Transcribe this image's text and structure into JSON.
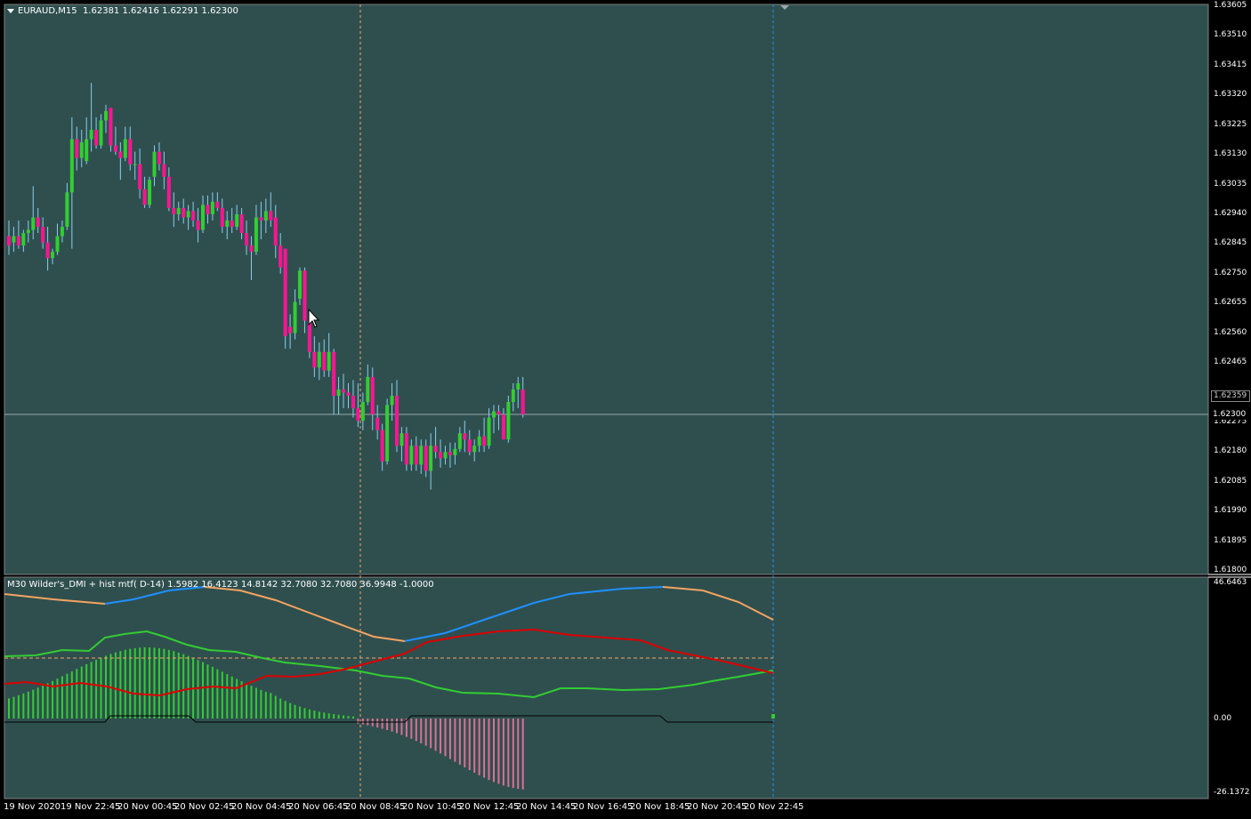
{
  "symbol_header": {
    "symbol": "EURAUD,M15",
    "ohlc": "1.62381 1.62416 1.62291 1.62300"
  },
  "indicator_header": "M30 Wilder's_DMI + hist mtf( D-14) 1.5982 16.4123 14.8142 32.7080 32.7080 36.9948 -1.0000",
  "colors": {
    "background": "#2F4F4F",
    "bull": "#32CD32",
    "bear": "#FF1493",
    "orange_line": "#F4A460",
    "blue_line": "#1E90FF",
    "red_line": "#DD0000",
    "green_line": "#32CD32",
    "hist_pos": "#32CD32",
    "hist_neg": "#DB7093"
  },
  "price_axis": {
    "ticks": [
      "1.63605",
      "1.63510",
      "1.63415",
      "1.63320",
      "1.63225",
      "1.63130",
      "1.63035",
      "1.62940",
      "1.62845",
      "1.62750",
      "1.62655",
      "1.62560",
      "1.62465",
      "1.62275",
      "1.62180",
      "1.62085",
      "1.61990",
      "1.61895",
      "1.61800"
    ],
    "bid_label": "1.62359",
    "current_label": "1.62300"
  },
  "indicator_axis": {
    "top": "46.6463",
    "zero": "0.00",
    "bottom": "-26.1372"
  },
  "time_axis": [
    "19 Nov 2020",
    "19 Nov 22:45",
    "20 Nov 00:45",
    "20 Nov 02:45",
    "20 Nov 04:45",
    "20 Nov 06:45",
    "20 Nov 08:45",
    "20 Nov 10:45",
    "20 Nov 12:45",
    "20 Nov 14:45",
    "20 Nov 16:45",
    "20 Nov 18:45",
    "20 Nov 20:45",
    "20 Nov 22:45"
  ],
  "chart_data": {
    "type": "candlestick",
    "ylim": [
      1.618,
      1.63605
    ],
    "candles": [
      [
        1.6287,
        1.6292,
        1.6281,
        1.6284
      ],
      [
        1.6285,
        1.629,
        1.6282,
        1.6287
      ],
      [
        1.6287,
        1.6292,
        1.6283,
        1.6284
      ],
      [
        1.6284,
        1.6289,
        1.6282,
        1.6288
      ],
      [
        1.6288,
        1.6292,
        1.6285,
        1.6289
      ],
      [
        1.6289,
        1.6303,
        1.6286,
        1.6293
      ],
      [
        1.6293,
        1.6296,
        1.6288,
        1.629
      ],
      [
        1.629,
        1.6293,
        1.6283,
        1.6285
      ],
      [
        1.6285,
        1.629,
        1.6276,
        1.628
      ],
      [
        1.628,
        1.6283,
        1.6278,
        1.6282
      ],
      [
        1.6282,
        1.6291,
        1.6281,
        1.6287
      ],
      [
        1.6287,
        1.6292,
        1.6285,
        1.629
      ],
      [
        1.629,
        1.6304,
        1.6289,
        1.6301
      ],
      [
        1.6301,
        1.6325,
        1.6283,
        1.6318
      ],
      [
        1.6318,
        1.6322,
        1.6308,
        1.6312
      ],
      [
        1.6312,
        1.6321,
        1.6309,
        1.6317
      ],
      [
        1.6311,
        1.6325,
        1.631,
        1.6318
      ],
      [
        1.6318,
        1.6336,
        1.6314,
        1.6321
      ],
      [
        1.6321,
        1.6325,
        1.6315,
        1.6316
      ],
      [
        1.6316,
        1.6326,
        1.6315,
        1.6324
      ],
      [
        1.6324,
        1.6329,
        1.632,
        1.6327
      ],
      [
        1.6328,
        1.6328,
        1.6314,
        1.6316
      ],
      [
        1.6316,
        1.6322,
        1.6313,
        1.6314
      ],
      [
        1.6314,
        1.6317,
        1.6305,
        1.6312
      ],
      [
        1.6312,
        1.6322,
        1.6311,
        1.6318
      ],
      [
        1.6318,
        1.6322,
        1.6308,
        1.631
      ],
      [
        1.631,
        1.6314,
        1.6305,
        1.631
      ],
      [
        1.631,
        1.6315,
        1.6299,
        1.6302
      ],
      [
        1.6302,
        1.6306,
        1.6296,
        1.6297
      ],
      [
        1.6297,
        1.6306,
        1.6296,
        1.6305
      ],
      [
        1.6306,
        1.6316,
        1.6303,
        1.6314
      ],
      [
        1.6314,
        1.6317,
        1.6308,
        1.631
      ],
      [
        1.631,
        1.6314,
        1.6302,
        1.6306
      ],
      [
        1.6306,
        1.6309,
        1.6295,
        1.6296
      ],
      [
        1.6296,
        1.6301,
        1.629,
        1.6294
      ],
      [
        1.6294,
        1.6298,
        1.6292,
        1.6296
      ],
      [
        1.6296,
        1.6299,
        1.6291,
        1.6293
      ],
      [
        1.6293,
        1.6297,
        1.6289,
        1.6295
      ],
      [
        1.6295,
        1.6298,
        1.629,
        1.6292
      ],
      [
        1.6292,
        1.6296,
        1.6285,
        1.6289
      ],
      [
        1.6289,
        1.63,
        1.6288,
        1.6297
      ],
      [
        1.6297,
        1.63,
        1.6291,
        1.6294
      ],
      [
        1.6294,
        1.6301,
        1.6292,
        1.6298
      ],
      [
        1.6298,
        1.6301,
        1.6295,
        1.6296
      ],
      [
        1.6296,
        1.6299,
        1.6288,
        1.629
      ],
      [
        1.629,
        1.6295,
        1.6286,
        1.6292
      ],
      [
        1.6292,
        1.6296,
        1.6288,
        1.629
      ],
      [
        1.629,
        1.6297,
        1.6289,
        1.6294
      ],
      [
        1.6294,
        1.6296,
        1.6286,
        1.6288
      ],
      [
        1.6288,
        1.6292,
        1.6281,
        1.6284
      ],
      [
        1.6284,
        1.6287,
        1.6273,
        1.6282
      ],
      [
        1.6282,
        1.6297,
        1.6281,
        1.6293
      ],
      [
        1.6293,
        1.6298,
        1.6286,
        1.6292
      ],
      [
        1.6292,
        1.6299,
        1.6288,
        1.6295
      ],
      [
        1.6295,
        1.6301,
        1.629,
        1.6292
      ],
      [
        1.6293,
        1.6297,
        1.628,
        1.6284
      ],
      [
        1.6284,
        1.6288,
        1.6275,
        1.6277
      ],
      [
        1.6283,
        1.6283,
        1.6251,
        1.6255
      ],
      [
        1.6258,
        1.6262,
        1.6251,
        1.6256
      ],
      [
        1.6256,
        1.627,
        1.6254,
        1.6266
      ],
      [
        1.6267,
        1.6277,
        1.6265,
        1.6276
      ],
      [
        1.6276,
        1.6277,
        1.6256,
        1.626
      ],
      [
        1.626,
        1.6262,
        1.6248,
        1.625
      ],
      [
        1.625,
        1.6255,
        1.6242,
        1.6245
      ],
      [
        1.6245,
        1.6253,
        1.6241,
        1.625
      ],
      [
        1.625,
        1.6254,
        1.6242,
        1.6244
      ],
      [
        1.6244,
        1.6256,
        1.6242,
        1.625
      ],
      [
        1.625,
        1.6251,
        1.623,
        1.6236
      ],
      [
        1.6236,
        1.6242,
        1.623,
        1.6238
      ],
      [
        1.6238,
        1.6243,
        1.6232,
        1.6237
      ],
      [
        1.6237,
        1.624,
        1.6232,
        1.6236
      ],
      [
        1.6236,
        1.6241,
        1.6229,
        1.6232
      ],
      [
        1.6232,
        1.624,
        1.6226,
        1.6228
      ],
      [
        1.6228,
        1.6237,
        1.6225,
        1.6234
      ],
      [
        1.6234,
        1.6246,
        1.6233,
        1.6242
      ],
      [
        1.6242,
        1.6245,
        1.6225,
        1.623
      ],
      [
        1.6229,
        1.6233,
        1.6222,
        1.6225
      ],
      [
        1.6225,
        1.6227,
        1.6212,
        1.6215
      ],
      [
        1.6215,
        1.6235,
        1.6214,
        1.6233
      ],
      [
        1.6233,
        1.624,
        1.6228,
        1.6236
      ],
      [
        1.6236,
        1.6241,
        1.6218,
        1.622
      ],
      [
        1.622,
        1.6226,
        1.6215,
        1.6224
      ],
      [
        1.6224,
        1.6226,
        1.6212,
        1.6214
      ],
      [
        1.6214,
        1.6222,
        1.6212,
        1.622
      ],
      [
        1.622,
        1.6223,
        1.6212,
        1.6214
      ],
      [
        1.6214,
        1.6222,
        1.6211,
        1.622
      ],
      [
        1.622,
        1.6222,
        1.621,
        1.6212
      ],
      [
        1.6212,
        1.6224,
        1.6206,
        1.622
      ],
      [
        1.622,
        1.6226,
        1.6216,
        1.6218
      ],
      [
        1.6218,
        1.6222,
        1.6213,
        1.6216
      ],
      [
        1.6216,
        1.622,
        1.6214,
        1.6218
      ],
      [
        1.6218,
        1.6221,
        1.6213,
        1.6217
      ],
      [
        1.6217,
        1.6221,
        1.6214,
        1.6219
      ],
      [
        1.6219,
        1.6226,
        1.6218,
        1.6224
      ],
      [
        1.6224,
        1.6228,
        1.6218,
        1.6222
      ],
      [
        1.6222,
        1.6225,
        1.6217,
        1.6218
      ],
      [
        1.6218,
        1.6222,
        1.6215,
        1.622
      ],
      [
        1.622,
        1.6225,
        1.6218,
        1.6223
      ],
      [
        1.6223,
        1.6229,
        1.6218,
        1.622
      ],
      [
        1.622,
        1.6232,
        1.6219,
        1.6229
      ],
      [
        1.6229,
        1.6233,
        1.6224,
        1.6231
      ],
      [
        1.6231,
        1.6233,
        1.6225,
        1.623
      ],
      [
        1.623,
        1.6232,
        1.6222,
        1.6222
      ],
      [
        1.6222,
        1.6236,
        1.6221,
        1.6234
      ],
      [
        1.6234,
        1.624,
        1.6231,
        1.6238
      ],
      [
        1.6238,
        1.6242,
        1.6232,
        1.624
      ],
      [
        1.6238,
        1.6242,
        1.6229,
        1.623
      ]
    ]
  }
}
